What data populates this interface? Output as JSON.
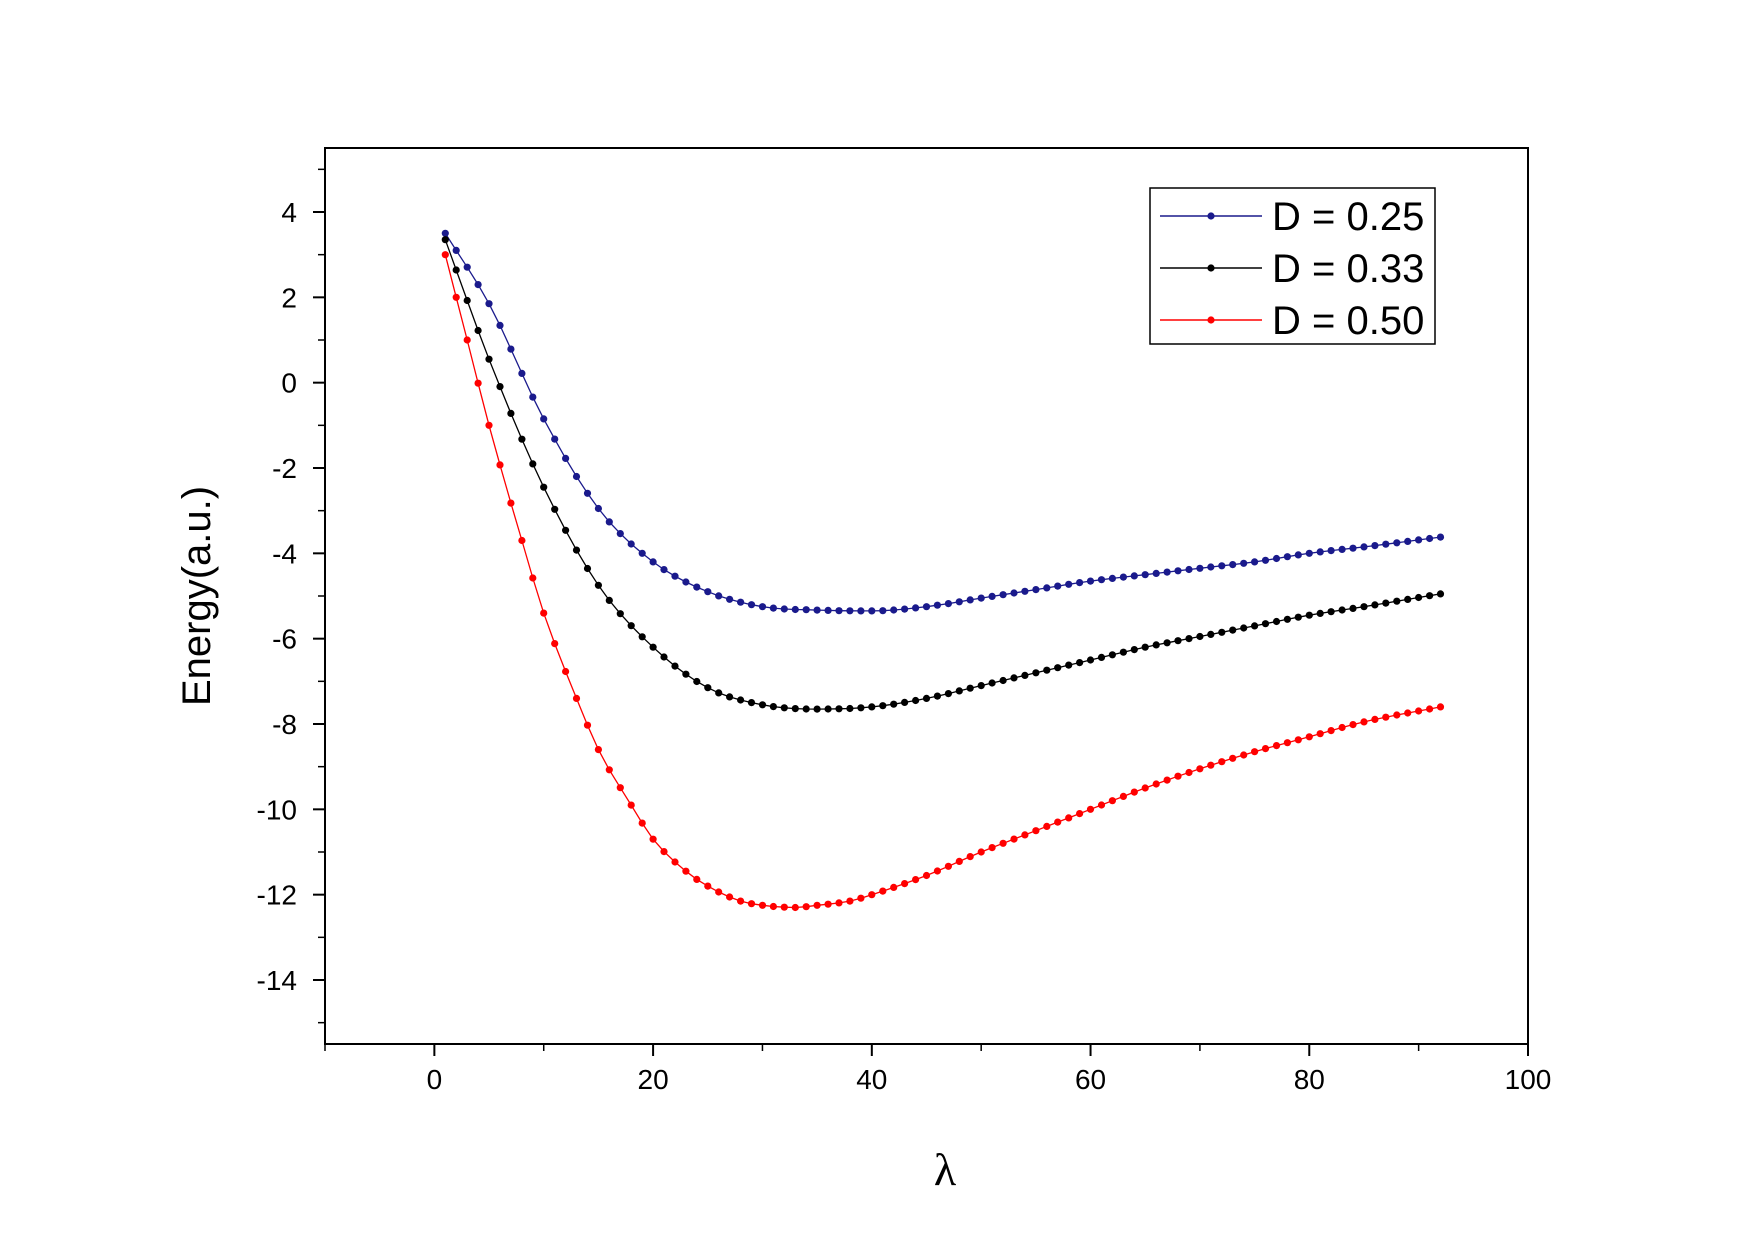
{
  "chart_data": {
    "type": "line",
    "title": "",
    "xlabel": "λ",
    "ylabel": "Energy(a.u.)",
    "xlim": [
      -10,
      100
    ],
    "ylim": [
      -15.5,
      5.5
    ],
    "xticks": [
      0,
      20,
      40,
      60,
      80,
      100
    ],
    "yticks": [
      4,
      2,
      0,
      -2,
      -4,
      -6,
      -8,
      -10,
      -12,
      -14
    ],
    "xtick_labels": [
      "0",
      "20",
      "40",
      "60",
      "80",
      "100"
    ],
    "ytick_labels": [
      "4",
      "2",
      "0",
      "-2",
      "-4",
      "-6",
      "-8",
      "-10",
      "-12",
      "-14"
    ],
    "grid": false,
    "legend_position": "top-right",
    "series": [
      {
        "name": "D = 0.25",
        "color": "#1a1a8c",
        "marker": "circle",
        "x": [
          1,
          5,
          10,
          15,
          20,
          25,
          30,
          35,
          40,
          45,
          50,
          55,
          60,
          65,
          70,
          75,
          80,
          85,
          92
        ],
        "y": [
          3.5,
          1.85,
          -0.85,
          -2.95,
          -4.2,
          -4.9,
          -5.25,
          -5.33,
          -5.35,
          -5.25,
          -5.05,
          -4.85,
          -4.65,
          -4.5,
          -4.35,
          -4.2,
          -4.0,
          -3.85,
          -3.62
        ]
      },
      {
        "name": "D = 0.33",
        "color": "#000000",
        "marker": "circle",
        "x": [
          1,
          5,
          10,
          15,
          20,
          25,
          30,
          35,
          40,
          45,
          50,
          55,
          60,
          65,
          70,
          75,
          80,
          85,
          92
        ],
        "y": [
          3.35,
          0.55,
          -2.45,
          -4.75,
          -6.2,
          -7.15,
          -7.55,
          -7.65,
          -7.6,
          -7.4,
          -7.1,
          -6.8,
          -6.5,
          -6.2,
          -5.95,
          -5.7,
          -5.45,
          -5.25,
          -4.95
        ]
      },
      {
        "name": "D = 0.50",
        "color": "#ff0000",
        "marker": "circle",
        "x": [
          1,
          3,
          5,
          8,
          10,
          13,
          15,
          18,
          20,
          23,
          25,
          28,
          30,
          33,
          35,
          38,
          40,
          45,
          50,
          55,
          60,
          65,
          70,
          75,
          80,
          85,
          92
        ],
        "y": [
          3.0,
          1.0,
          -1.0,
          -3.7,
          -5.4,
          -7.4,
          -8.6,
          -9.9,
          -10.7,
          -11.45,
          -11.8,
          -12.15,
          -12.25,
          -12.3,
          -12.25,
          -12.15,
          -12.0,
          -11.55,
          -11.0,
          -10.5,
          -10.0,
          -9.5,
          -9.05,
          -8.65,
          -8.3,
          -7.95,
          -7.6
        ]
      }
    ]
  }
}
